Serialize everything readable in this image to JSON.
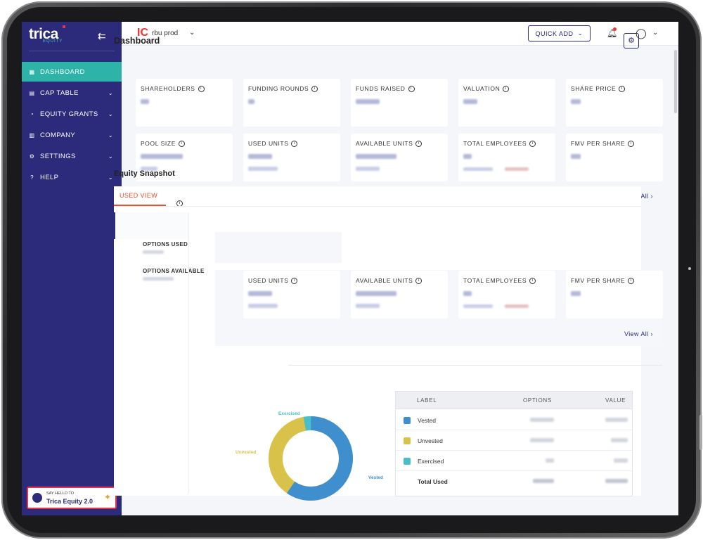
{
  "app": {
    "logo": "trica",
    "logo_sub": "EQUITY"
  },
  "sidebar": {
    "items": [
      {
        "label": "DASHBOARD",
        "icon": "grid-icon",
        "active": true
      },
      {
        "label": "CAP TABLE",
        "icon": "table-icon"
      },
      {
        "label": "EQUITY GRANTS",
        "icon": "pie-icon"
      },
      {
        "label": "COMPANY",
        "icon": "building-icon"
      },
      {
        "label": "SETTINGS",
        "icon": "gear-icon"
      },
      {
        "label": "HELP",
        "icon": "help-icon"
      }
    ],
    "promo": {
      "line1": "SAY HELLO TO",
      "line2": "Trica Equity 2.0"
    }
  },
  "topbar": {
    "company_icon": "IC",
    "company_name": "rbu prod",
    "quick_add": "QUICK ADD"
  },
  "page": {
    "title": "Dashboard"
  },
  "cards_row1": [
    "SHAREHOLDERS",
    "FUNDING ROUNDS",
    "FUNDS RAISED",
    "VALUATION",
    "SHARE PRICE"
  ],
  "cards_row2": [
    "POOL SIZE",
    "USED UNITS",
    "AVAILABLE UNITS",
    "TOTAL EMPLOYEES",
    "FMV PER SHARE"
  ],
  "cards_row3": [
    "USED UNITS",
    "AVAILABLE UNITS",
    "TOTAL EMPLOYEES",
    "FMV PER SHARE"
  ],
  "snapshot": {
    "title": "Equity Snapshot",
    "view_all": "View All",
    "tab": "USED VIEW",
    "side_tabs": [
      "OPTIONS USED",
      "OPTIONS AVAILABLE"
    ]
  },
  "donut": {
    "labels": [
      "Exercised",
      "Unvested",
      "Vested"
    ],
    "colors": [
      "#4bbfc9",
      "#d9c24a",
      "#3f8fcf"
    ]
  },
  "legend_table": {
    "headers": [
      "LABEL",
      "OPTIONS",
      "VALUE"
    ],
    "rows": [
      {
        "label": "Vested",
        "color": "#3f8fcf"
      },
      {
        "label": "Unvested",
        "color": "#d9c24a"
      },
      {
        "label": "Exercised",
        "color": "#4bbfc9"
      }
    ],
    "total": "Total Used"
  }
}
